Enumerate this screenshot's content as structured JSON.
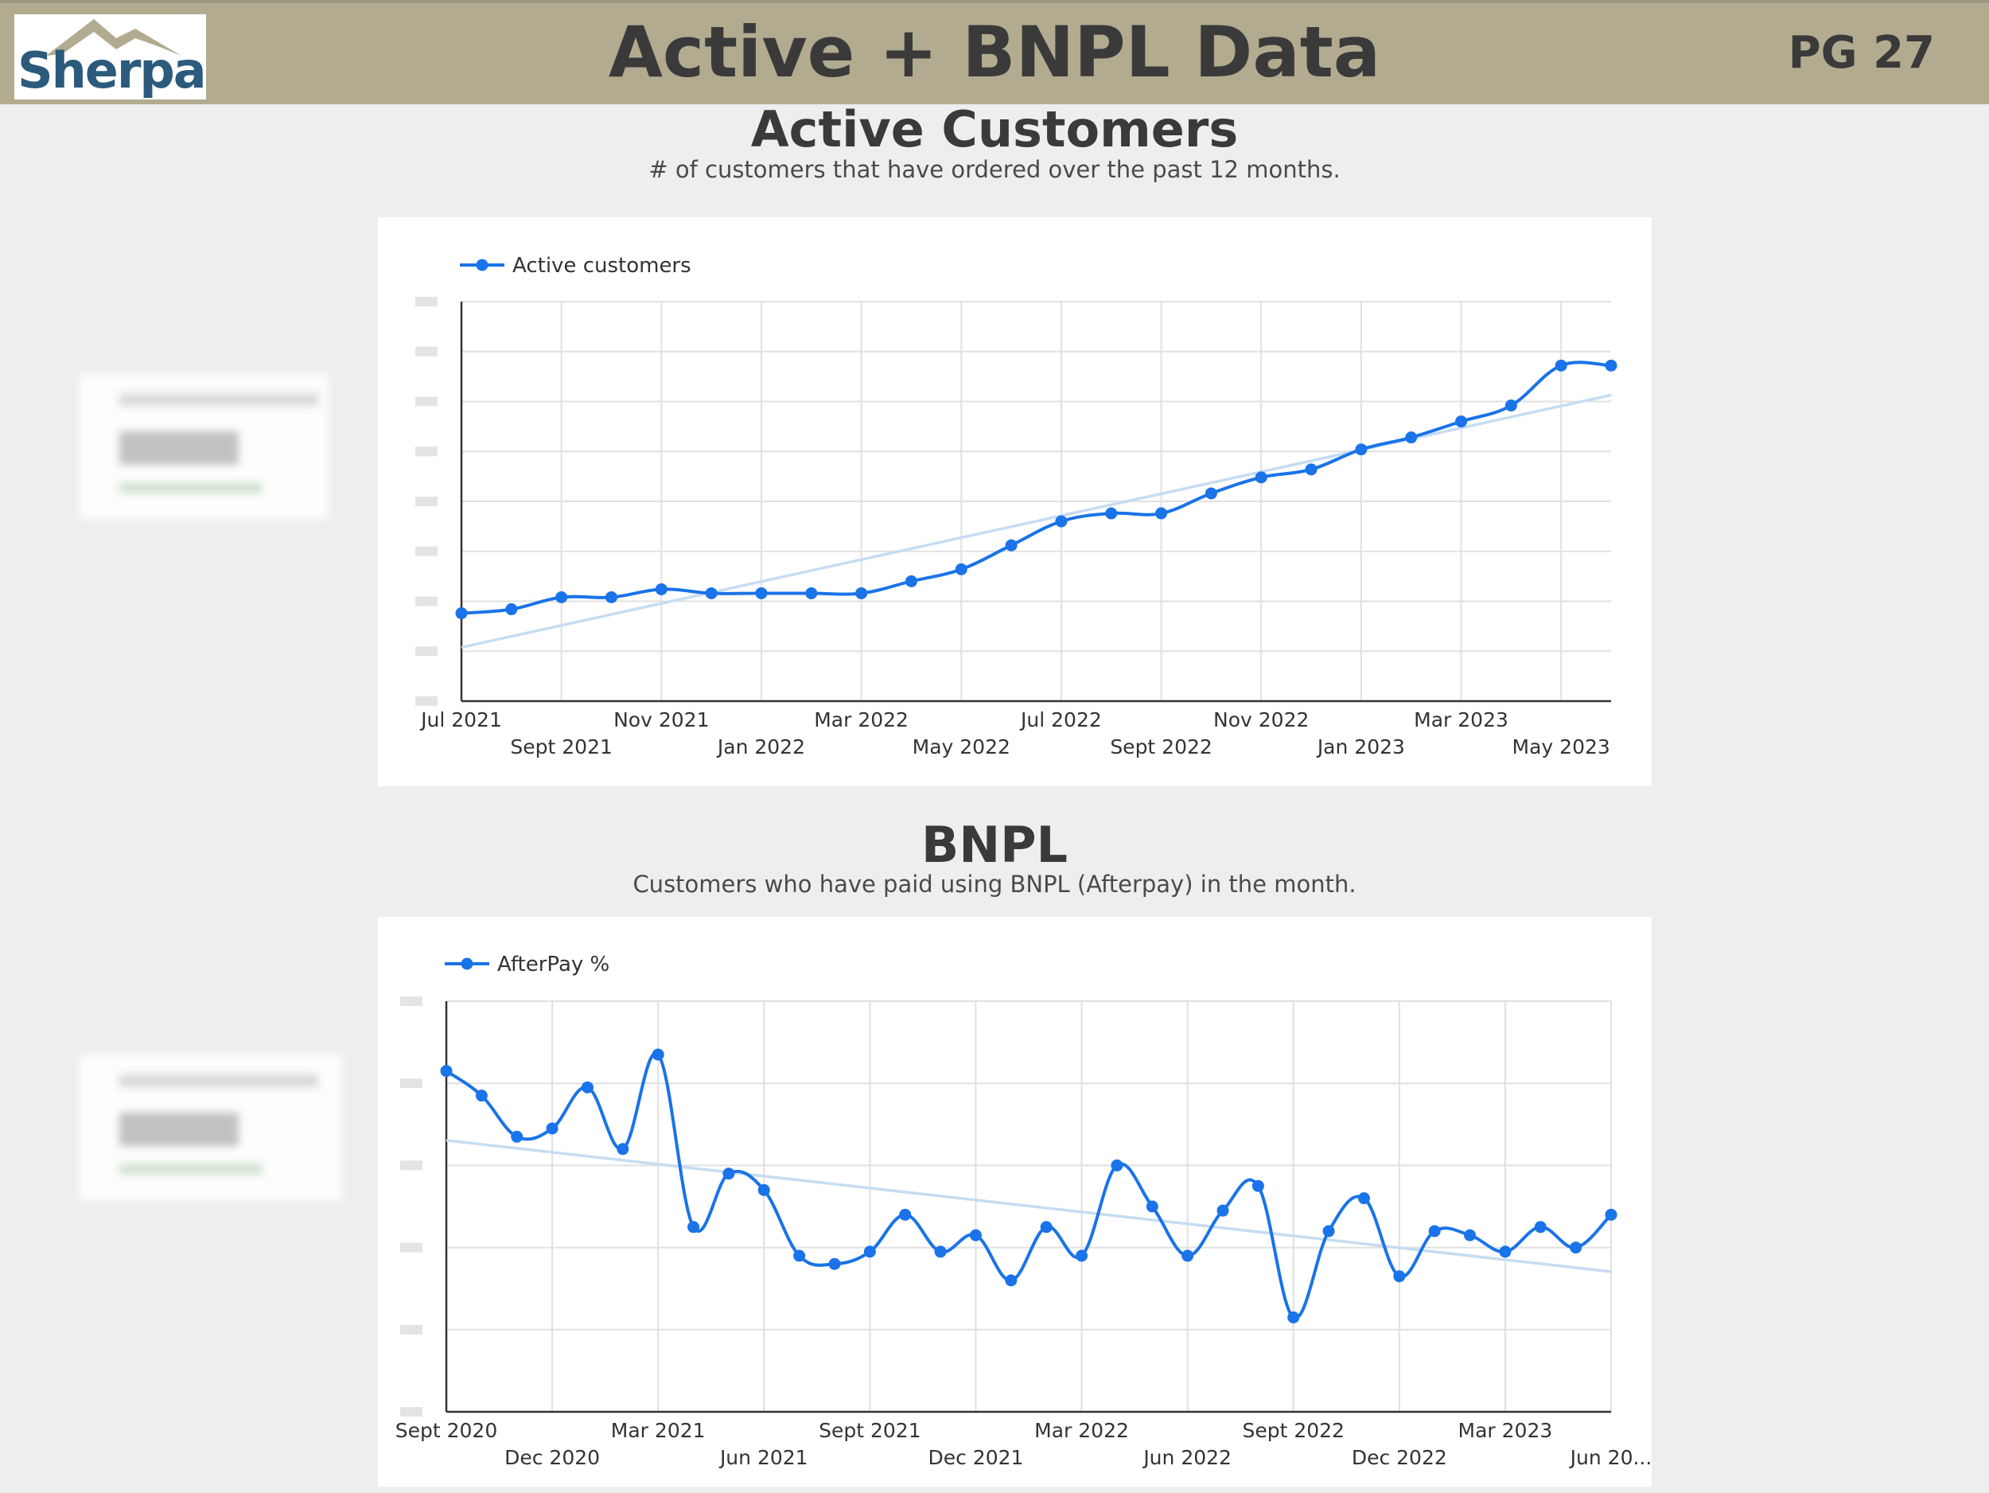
{
  "header": {
    "logo_text": "Sherpa",
    "title": "Active + BNPL Data",
    "page_number": "PG 27"
  },
  "sections": [
    {
      "title": "Active Customers",
      "subtitle": "# of customers that have ordered over the past 12 months."
    },
    {
      "title": "BNPL",
      "subtitle": "Customers who have paid using BNPL (Afterpay) in the month."
    }
  ],
  "colors": {
    "header_bg": "#b2ab90",
    "series_line": "#1a73e8",
    "trendline": "#c6dcf2",
    "grid": "#e0e0e0",
    "page_bg": "#eceef0"
  },
  "chart_data": [
    {
      "type": "line",
      "series": [
        {
          "name": "Active customers",
          "values": [
            0.22,
            0.23,
            0.26,
            0.26,
            0.28,
            0.27,
            0.27,
            0.27,
            0.27,
            0.3,
            0.33,
            0.39,
            0.45,
            0.47,
            0.47,
            0.52,
            0.56,
            0.58,
            0.63,
            0.66,
            0.7,
            0.74,
            0.84,
            0.84
          ]
        }
      ],
      "x": [
        "Jul 2021",
        "Aug 2021",
        "Sept 2021",
        "Oct 2021",
        "Nov 2021",
        "Dec 2021",
        "Jan 2022",
        "Feb 2022",
        "Mar 2022",
        "Apr 2022",
        "May 2022",
        "Jun 2022",
        "Jul 2022",
        "Aug 2022",
        "Sept 2022",
        "Oct 2022",
        "Nov 2022",
        "Dec 2022",
        "Jan 2023",
        "Feb 2023",
        "Mar 2023",
        "Apr 2023",
        "May 2023",
        "Jun 2023"
      ],
      "tick_labels": [
        "Jul 2021",
        "Sept 2021",
        "Nov 2021",
        "Jan 2022",
        "Mar 2022",
        "May 2022",
        "Jul 2022",
        "Sept 2022",
        "Nov 2022",
        "Jan 2023",
        "Mar 2023",
        "May 2023"
      ],
      "trendline": true,
      "legend": "top-left",
      "grid": true,
      "y_axis_labels_obscured": true
    },
    {
      "type": "line",
      "series": [
        {
          "name": "AfterPay %",
          "values": [
            0.83,
            0.77,
            0.67,
            0.69,
            0.79,
            0.64,
            0.87,
            0.45,
            0.58,
            0.54,
            0.38,
            0.36,
            0.39,
            0.48,
            0.39,
            0.43,
            0.32,
            0.45,
            0.38,
            0.6,
            0.5,
            0.38,
            0.49,
            0.55,
            0.23,
            0.44,
            0.52,
            0.33,
            0.44,
            0.43,
            0.39,
            0.45,
            0.4,
            0.48
          ]
        }
      ],
      "x": [
        "Sept 2020",
        "Oct 2020",
        "Nov 2020",
        "Dec 2020",
        "Jan 2021",
        "Feb 2021",
        "Mar 2021",
        "Apr 2021",
        "May 2021",
        "Jun 2021",
        "Jul 2021",
        "Aug 2021",
        "Sept 2021",
        "Oct 2021",
        "Nov 2021",
        "Dec 2021",
        "Jan 2022",
        "Feb 2022",
        "Mar 2022",
        "Apr 2022",
        "May 2022",
        "Jun 2022",
        "Jul 2022",
        "Aug 2022",
        "Sept 2022",
        "Oct 2022",
        "Nov 2022",
        "Dec 2022",
        "Jan 2023",
        "Feb 2023",
        "Mar 2023",
        "Apr 2023",
        "May 2023",
        "Jun 2023"
      ],
      "tick_labels": [
        "Sept 2020",
        "Dec 2020",
        "Mar 2021",
        "Jun 2021",
        "Sept 2021",
        "Dec 2021",
        "Mar 2022",
        "Jun 2022",
        "Sept 2022",
        "Dec 2022",
        "Mar 2023",
        "Jun 20..."
      ],
      "trendline": true,
      "legend": "top-left",
      "grid": true,
      "y_axis_labels_obscured": true
    }
  ]
}
